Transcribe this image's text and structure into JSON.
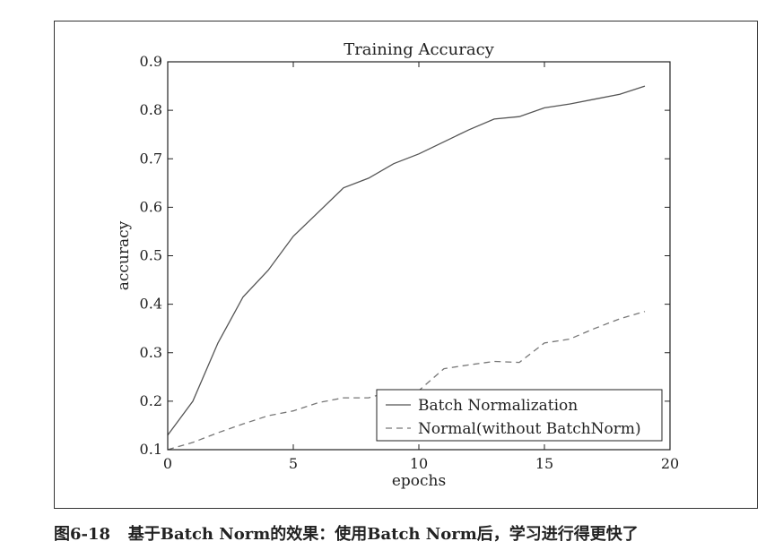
{
  "chart_data": {
    "type": "line",
    "title": "Training Accuracy",
    "xlabel": "epochs",
    "ylabel": "accuracy",
    "xlim": [
      0,
      20
    ],
    "ylim": [
      0.1,
      0.9
    ],
    "xticks": [
      0,
      5,
      10,
      15,
      20
    ],
    "yticks": [
      0.1,
      0.2,
      0.3,
      0.4,
      0.5,
      0.6,
      0.7,
      0.8,
      0.9
    ],
    "grid": false,
    "legend_position": "bottom-right",
    "series": [
      {
        "name": "Batch Normalization",
        "style": "solid",
        "x": [
          0,
          1,
          2,
          3,
          4,
          5,
          6,
          7,
          8,
          9,
          10,
          11,
          12,
          13,
          14,
          15,
          16,
          17,
          18,
          19
        ],
        "values": [
          0.13,
          0.2,
          0.32,
          0.415,
          0.47,
          0.54,
          0.59,
          0.64,
          0.66,
          0.69,
          0.71,
          0.735,
          0.76,
          0.782,
          0.787,
          0.805,
          0.813,
          0.823,
          0.833,
          0.85
        ]
      },
      {
        "name": "Normal(without BatchNorm)",
        "style": "dashed",
        "x": [
          0,
          1,
          2,
          3,
          4,
          5,
          6,
          7,
          8,
          9,
          10,
          11,
          12,
          13,
          14,
          15,
          16,
          17,
          18,
          19
        ],
        "values": [
          0.1,
          0.115,
          0.135,
          0.153,
          0.17,
          0.18,
          0.197,
          0.207,
          0.207,
          0.222,
          0.222,
          0.267,
          0.275,
          0.282,
          0.28,
          0.32,
          0.328,
          0.35,
          0.37,
          0.385
        ]
      }
    ]
  },
  "caption": {
    "label": "图6-18",
    "text": "基于Batch Norm的效果：使用Batch Norm后，学习进行得更快了"
  },
  "colors": {
    "solid_line": "#555555",
    "dashed_line": "#777777",
    "axis": "#222222"
  }
}
